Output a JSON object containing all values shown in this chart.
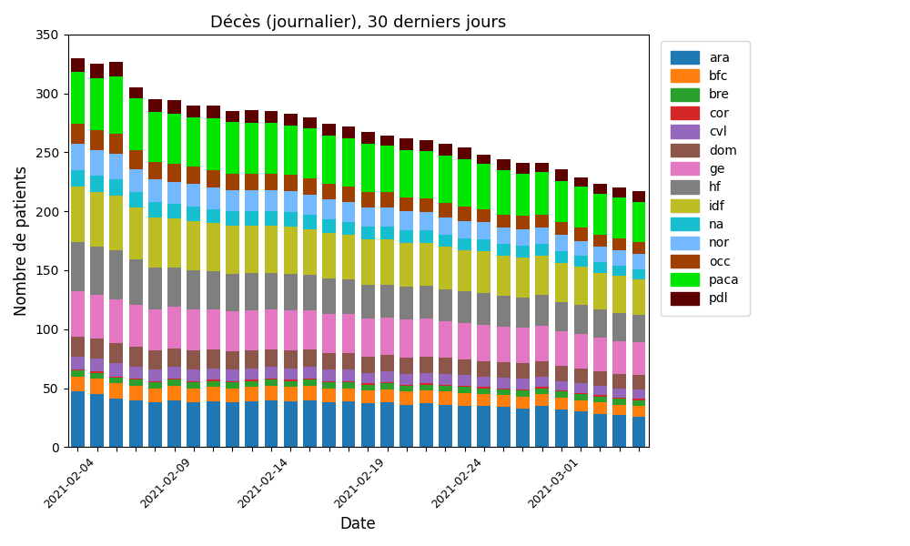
{
  "title": "Décès (journalier), 30 derniers jours",
  "xlabel": "Date",
  "ylabel": "Nombre de patients",
  "regions": [
    "ara",
    "bfc",
    "bre",
    "cor",
    "cvl",
    "dom",
    "ge",
    "hf",
    "idf",
    "na",
    "nor",
    "occ",
    "paca",
    "pdl"
  ],
  "colors": {
    "ara": "#1f77b4",
    "bfc": "#ff7f0e",
    "bre": "#2ca02c",
    "cor": "#d62728",
    "cvl": "#9467bd",
    "dom": "#8c564b",
    "ge": "#e377c2",
    "hf": "#7f7f7f",
    "idf": "#bcbd22",
    "na": "#17becf",
    "nor": "#74b9ff",
    "occ": "#a04000",
    "paca": "#00e600",
    "pdl": "#5c0000"
  },
  "dates": [
    "2021-02-03",
    "2021-02-04",
    "2021-02-05",
    "2021-02-06",
    "2021-02-07",
    "2021-02-08",
    "2021-02-09",
    "2021-02-10",
    "2021-02-11",
    "2021-02-12",
    "2021-02-13",
    "2021-02-14",
    "2021-02-15",
    "2021-02-16",
    "2021-02-17",
    "2021-02-18",
    "2021-02-19",
    "2021-02-20",
    "2021-02-21",
    "2021-02-22",
    "2021-02-23",
    "2021-02-24",
    "2021-02-25",
    "2021-02-26",
    "2021-02-27",
    "2021-02-28",
    "2021-03-01",
    "2021-03-02",
    "2021-03-03",
    "2021-03-04"
  ],
  "data": {
    "ara": [
      47,
      45,
      41,
      40,
      38,
      40,
      38,
      39,
      38,
      39,
      40,
      39,
      40,
      38,
      39,
      37,
      38,
      36,
      37,
      36,
      35,
      35,
      34,
      33,
      35,
      32,
      30,
      28,
      27,
      26
    ],
    "bfc": [
      13,
      13,
      13,
      12,
      12,
      12,
      12,
      12,
      12,
      12,
      12,
      12,
      12,
      12,
      11,
      11,
      11,
      11,
      11,
      11,
      11,
      10,
      10,
      10,
      10,
      10,
      10,
      10,
      9,
      9
    ],
    "bre": [
      5,
      5,
      5,
      5,
      5,
      5,
      5,
      5,
      5,
      5,
      5,
      5,
      5,
      5,
      5,
      5,
      5,
      5,
      5,
      5,
      5,
      5,
      5,
      5,
      5,
      5,
      5,
      5,
      5,
      5
    ],
    "cor": [
      1,
      1,
      1,
      1,
      1,
      1,
      1,
      1,
      1,
      1,
      1,
      1,
      1,
      1,
      1,
      1,
      1,
      1,
      1,
      1,
      1,
      1,
      1,
      1,
      1,
      1,
      1,
      1,
      1,
      1
    ],
    "cvl": [
      11,
      11,
      11,
      10,
      10,
      10,
      10,
      10,
      10,
      10,
      10,
      10,
      10,
      10,
      10,
      9,
      9,
      9,
      9,
      9,
      9,
      9,
      9,
      9,
      9,
      8,
      8,
      8,
      8,
      8
    ],
    "dom": [
      17,
      17,
      17,
      17,
      16,
      16,
      16,
      16,
      15,
      15,
      15,
      15,
      15,
      14,
      14,
      14,
      14,
      14,
      14,
      14,
      13,
      13,
      13,
      13,
      13,
      13,
      13,
      12,
      12,
      12
    ],
    "ge": [
      38,
      37,
      37,
      36,
      35,
      35,
      35,
      34,
      34,
      34,
      34,
      34,
      33,
      33,
      33,
      32,
      32,
      32,
      32,
      31,
      31,
      31,
      30,
      30,
      30,
      29,
      29,
      29,
      28,
      28
    ],
    "hf": [
      42,
      41,
      42,
      38,
      35,
      33,
      33,
      32,
      32,
      32,
      31,
      31,
      30,
      30,
      29,
      29,
      28,
      28,
      28,
      27,
      27,
      27,
      26,
      26,
      26,
      25,
      25,
      24,
      24,
      23
    ],
    "idf": [
      47,
      46,
      46,
      44,
      43,
      42,
      42,
      41,
      41,
      40,
      40,
      40,
      39,
      39,
      38,
      38,
      38,
      37,
      36,
      36,
      35,
      35,
      34,
      34,
      33,
      33,
      32,
      31,
      31,
      30
    ],
    "na": [
      14,
      14,
      14,
      13,
      13,
      12,
      12,
      12,
      12,
      12,
      12,
      12,
      12,
      11,
      11,
      11,
      11,
      11,
      11,
      10,
      10,
      10,
      10,
      10,
      10,
      10,
      9,
      9,
      9,
      9
    ],
    "nor": [
      22,
      22,
      22,
      20,
      19,
      19,
      19,
      18,
      18,
      18,
      18,
      18,
      17,
      17,
      17,
      16,
      16,
      16,
      15,
      15,
      15,
      15,
      14,
      14,
      14,
      14,
      13,
      13,
      13,
      13
    ],
    "occ": [
      17,
      17,
      17,
      16,
      15,
      15,
      15,
      15,
      14,
      14,
      14,
      14,
      14,
      13,
      13,
      13,
      13,
      12,
      12,
      12,
      12,
      11,
      11,
      11,
      11,
      11,
      11,
      10,
      10,
      10
    ],
    "paca": [
      44,
      44,
      48,
      44,
      42,
      43,
      42,
      44,
      44,
      43,
      43,
      42,
      42,
      41,
      41,
      41,
      40,
      40,
      40,
      40,
      40,
      38,
      38,
      36,
      36,
      35,
      35,
      35,
      35,
      34
    ],
    "pdl": [
      12,
      12,
      13,
      9,
      11,
      11,
      10,
      11,
      9,
      11,
      10,
      10,
      10,
      10,
      10,
      10,
      8,
      10,
      9,
      10,
      10,
      8,
      9,
      9,
      8,
      10,
      8,
      8,
      8,
      9
    ]
  },
  "shown_dates": [
    "2021-02-04",
    "2021-02-09",
    "2021-02-14",
    "2021-02-19",
    "2021-02-24",
    "2021-03-01"
  ],
  "ylim": [
    0,
    350
  ],
  "figsize": [
    10.0,
    6.0
  ],
  "dpi": 100
}
